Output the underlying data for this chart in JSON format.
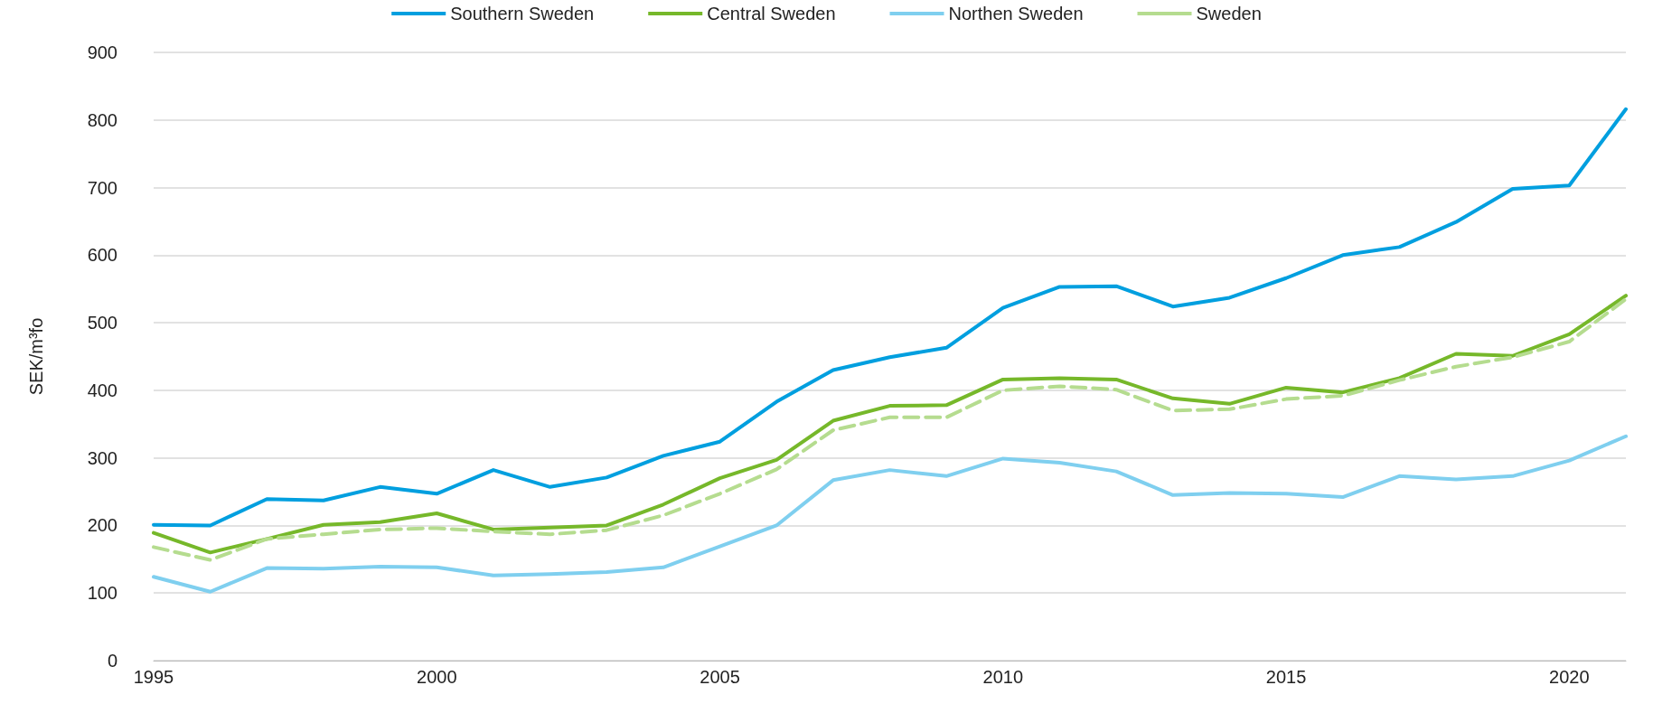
{
  "chart_data": {
    "type": "line",
    "ylabel": "SEK/m³fo",
    "x": [
      1995,
      1996,
      1997,
      1998,
      1999,
      2000,
      2001,
      2002,
      2003,
      2004,
      2005,
      2006,
      2007,
      2008,
      2009,
      2010,
      2011,
      2012,
      2013,
      2014,
      2015,
      2016,
      2017,
      2018,
      2019,
      2020,
      2021
    ],
    "series": [
      {
        "name": "Southern Sweden",
        "color": "#009fdf",
        "line_style": "solid",
        "values": [
          201,
          200,
          239,
          237,
          257,
          247,
          282,
          257,
          271,
          303,
          324,
          383,
          430,
          449,
          463,
          522,
          553,
          554,
          524,
          537,
          566,
          600,
          612,
          649,
          698,
          703,
          816
        ]
      },
      {
        "name": "Central Sweden",
        "color": "#76b82a",
        "line_style": "solid",
        "values": [
          189,
          160,
          180,
          201,
          205,
          218,
          194,
          197,
          200,
          231,
          270,
          297,
          355,
          377,
          378,
          416,
          418,
          416,
          388,
          380,
          404,
          397,
          418,
          454,
          451,
          483,
          540
        ]
      },
      {
        "name": "Northen Sweden",
        "color": "#7fcfef",
        "line_style": "solid",
        "values": [
          124,
          102,
          137,
          136,
          139,
          138,
          126,
          128,
          131,
          138,
          169,
          200,
          267,
          282,
          273,
          299,
          293,
          280,
          245,
          248,
          247,
          242,
          273,
          268,
          273,
          296,
          332
        ]
      },
      {
        "name": "Sweden",
        "color": "#b5dc8f",
        "line_style": "dashed",
        "values": [
          168,
          149,
          180,
          187,
          194,
          196,
          191,
          187,
          193,
          215,
          247,
          283,
          341,
          360,
          360,
          400,
          406,
          401,
          370,
          372,
          387,
          392,
          415,
          435,
          449,
          472,
          535
        ]
      }
    ],
    "xlim": [
      1995,
      2021
    ],
    "xticks": [
      1995,
      2000,
      2005,
      2010,
      2015,
      2020
    ],
    "ylim": [
      0,
      900
    ],
    "yticks": [
      0,
      100,
      200,
      300,
      400,
      500,
      600,
      700,
      800,
      900
    ],
    "grid": "y",
    "legend": "top",
    "marker": "none"
  }
}
